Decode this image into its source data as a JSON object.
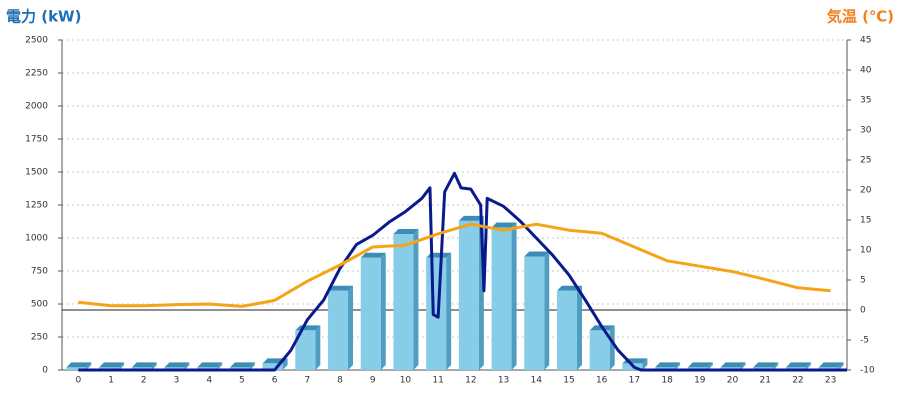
{
  "chart_data": {
    "type": "combo",
    "y_label": "電力 (kW)",
    "y2_label": "気温 (℃)",
    "categories": [
      "0",
      "1",
      "2",
      "3",
      "4",
      "5",
      "6",
      "7",
      "8",
      "9",
      "10",
      "11",
      "12",
      "13",
      "14",
      "15",
      "16",
      "17",
      "18",
      "19",
      "20",
      "21",
      "22",
      "23"
    ],
    "ylim": [
      0,
      2500
    ],
    "yticks": [
      0,
      250,
      500,
      750,
      1000,
      1250,
      1500,
      1750,
      2000,
      2250,
      2500
    ],
    "y2lim": [
      -10,
      45
    ],
    "y2ticks": [
      -10,
      -5,
      0,
      5,
      10,
      15,
      20,
      25,
      30,
      35,
      40,
      45
    ],
    "y2_reference": 0,
    "grid": true,
    "series": [
      {
        "type": "bar",
        "color": "#87cde8",
        "values": [
          20,
          20,
          20,
          20,
          20,
          20,
          50,
          300,
          600,
          850,
          1030,
          850,
          1130,
          1080,
          860,
          600,
          300,
          50,
          20,
          20,
          20,
          20,
          20,
          20
        ]
      },
      {
        "type": "line",
        "color": "#0a1a8c",
        "x": [
          0,
          6.0,
          6.5,
          7.0,
          7.5,
          8.0,
          8.5,
          9.0,
          9.5,
          10.0,
          10.5,
          10.75,
          10.85,
          11.0,
          11.2,
          11.5,
          11.7,
          12.0,
          12.3,
          12.4,
          12.5,
          13.0,
          13.5,
          14.0,
          14.5,
          15.0,
          15.5,
          16.0,
          16.5,
          17.0,
          17.2,
          23.5
        ],
        "values": [
          0,
          0,
          150,
          380,
          530,
          770,
          950,
          1020,
          1120,
          1200,
          1300,
          1380,
          420,
          400,
          1350,
          1490,
          1380,
          1370,
          1250,
          600,
          1300,
          1240,
          1130,
          1000,
          870,
          720,
          530,
          330,
          150,
          20,
          0,
          0
        ]
      },
      {
        "type": "line",
        "axis": "y2",
        "color": "#f5a418",
        "values": [
          1.3,
          0.7,
          0.7,
          0.9,
          1.0,
          0.6,
          1.6,
          4.8,
          7.5,
          10.5,
          10.8,
          12.7,
          14.3,
          13.3,
          14.3,
          13.3,
          12.8,
          10.5,
          8.2,
          7.3,
          6.4,
          5.1,
          3.7,
          3.2
        ]
      }
    ]
  }
}
